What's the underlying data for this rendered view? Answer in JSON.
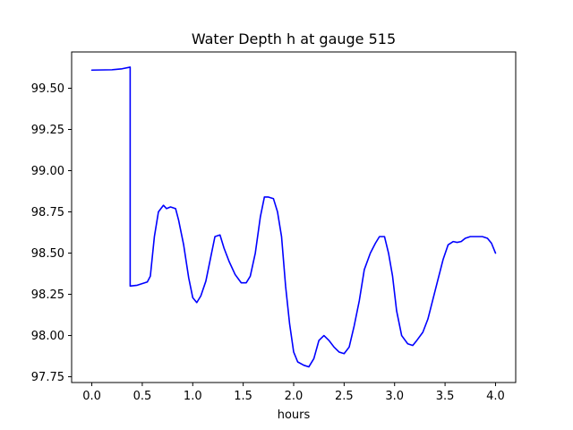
{
  "chart_data": {
    "type": "line",
    "title": "Water Depth h at gauge 515",
    "xlabel": "hours",
    "ylabel": "",
    "xlim": [
      -0.2,
      4.2
    ],
    "ylim": [
      97.715,
      99.72
    ],
    "x_ticks": [
      0.0,
      0.5,
      1.0,
      1.5,
      2.0,
      2.5,
      3.0,
      3.5,
      4.0
    ],
    "x_tick_labels": [
      "0.0",
      "0.5",
      "1.0",
      "1.5",
      "2.0",
      "2.5",
      "3.0",
      "3.5",
      "4.0"
    ],
    "y_ticks": [
      97.75,
      98.0,
      98.25,
      98.5,
      98.75,
      99.0,
      99.25,
      99.5
    ],
    "y_tick_labels": [
      "97.75",
      "98.00",
      "98.25",
      "98.50",
      "98.75",
      "99.00",
      "99.25",
      "99.50"
    ],
    "grid": false,
    "series": [
      {
        "color": "#0000ff",
        "x": [
          0.0,
          0.2,
          0.3,
          0.38,
          0.38,
          0.45,
          0.55,
          0.58,
          0.62,
          0.66,
          0.71,
          0.74,
          0.78,
          0.83,
          0.86,
          0.91,
          0.96,
          1.0,
          1.04,
          1.08,
          1.13,
          1.18,
          1.22,
          1.27,
          1.31,
          1.36,
          1.42,
          1.48,
          1.53,
          1.57,
          1.62,
          1.67,
          1.71,
          1.75,
          1.8,
          1.84,
          1.88,
          1.92,
          1.96,
          2.0,
          2.04,
          2.1,
          2.15,
          2.2,
          2.25,
          2.3,
          2.35,
          2.4,
          2.45,
          2.5,
          2.55,
          2.6,
          2.65,
          2.7,
          2.76,
          2.81,
          2.85,
          2.9,
          2.94,
          2.98,
          3.02,
          3.07,
          3.13,
          3.18,
          3.22,
          3.28,
          3.33,
          3.38,
          3.43,
          3.48,
          3.53,
          3.58,
          3.62,
          3.66,
          3.7,
          3.75,
          3.81,
          3.87,
          3.92,
          3.96,
          4.0
        ],
        "y": [
          99.61,
          99.612,
          99.618,
          99.628,
          98.3,
          98.305,
          98.325,
          98.36,
          98.6,
          98.75,
          98.79,
          98.77,
          98.78,
          98.77,
          98.7,
          98.55,
          98.35,
          98.23,
          98.2,
          98.24,
          98.33,
          98.48,
          98.6,
          98.61,
          98.53,
          98.45,
          98.37,
          98.32,
          98.32,
          98.36,
          98.5,
          98.72,
          98.84,
          98.84,
          98.83,
          98.75,
          98.6,
          98.3,
          98.07,
          97.9,
          97.84,
          97.82,
          97.81,
          97.86,
          97.97,
          98.0,
          97.97,
          97.93,
          97.9,
          97.89,
          97.93,
          98.06,
          98.21,
          98.4,
          98.5,
          98.56,
          98.6,
          98.6,
          98.5,
          98.36,
          98.15,
          98.0,
          97.95,
          97.94,
          97.97,
          98.02,
          98.1,
          98.22,
          98.34,
          98.46,
          98.55,
          98.57,
          98.565,
          98.57,
          98.59,
          98.6,
          98.6,
          98.6,
          98.59,
          98.56,
          98.5
        ]
      }
    ]
  }
}
